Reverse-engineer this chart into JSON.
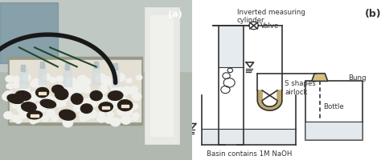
{
  "fig_width": 4.74,
  "fig_height": 2.01,
  "dpi": 100,
  "bg_color": "#ffffff",
  "photo_label": "(a)",
  "schematic_label": "(b)",
  "labels": {
    "inverted_cylinder": "Inverted measuring\ncylinder",
    "valve": "Valve",
    "s_airlock": "S shapes\nairlock",
    "basin": "Basin contains 1M NaOH",
    "bung": "Bung",
    "bottle": "Bottle"
  },
  "line_color": "#333333",
  "water_color": "#c8d4dc",
  "s_trap_color": "#b8a060",
  "photo_bg": "#a09080",
  "photo_mid": "#c8b898",
  "photo_dark": "#504030",
  "photo_white": "#f0f0f0",
  "photo_metal": "#a0a898",
  "photo_bg_top": "#9aacb0",
  "photo_bg_wall": "#c8c0b0"
}
